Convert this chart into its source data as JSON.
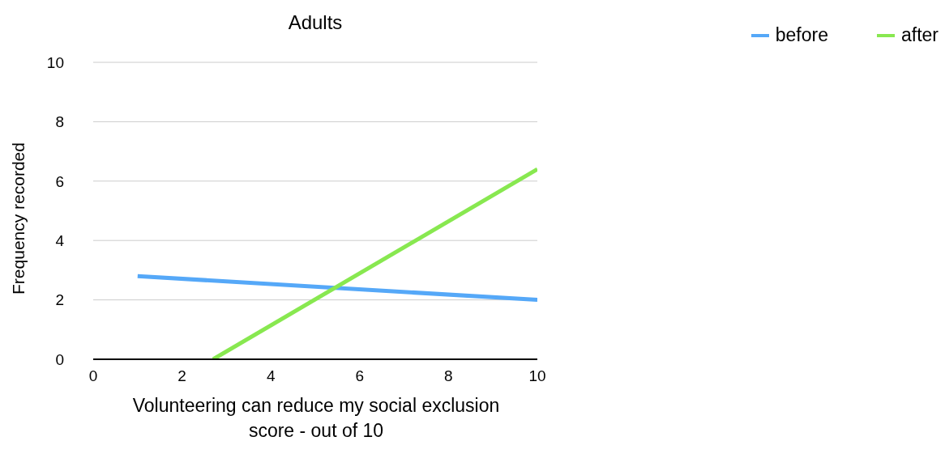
{
  "chart_data": {
    "type": "line",
    "title": "Adults",
    "xlabel": "Volunteering can reduce my social exclusion score - out of 10",
    "ylabel": "Frequency recorded",
    "series": [
      {
        "name": "before",
        "color": "#55a8f8",
        "x": [
          1,
          10
        ],
        "values": [
          2.8,
          2.0
        ]
      },
      {
        "name": "after",
        "color": "#88e850",
        "x": [
          2.7,
          10
        ],
        "values": [
          0,
          6.4
        ]
      }
    ],
    "xlim": [
      0,
      10
    ],
    "xticks": [
      0,
      2,
      4,
      6,
      8,
      10
    ],
    "ylim": [
      0,
      10
    ],
    "yticks": [
      0,
      2,
      4,
      6,
      8,
      10
    ],
    "grid": "y",
    "legend": "top right",
    "marker": "none",
    "line_style": "solid"
  }
}
